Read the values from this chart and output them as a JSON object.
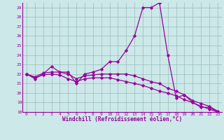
{
  "xlabel": "Windchill (Refroidissement éolien,°C)",
  "bg_color": "#cce8e8",
  "line_color": "#990099",
  "grid_color": "#99bbbb",
  "xlim": [
    -0.5,
    23.5
  ],
  "ylim": [
    18,
    29.5
  ],
  "yticks": [
    18,
    19,
    20,
    21,
    22,
    23,
    24,
    25,
    26,
    27,
    28,
    29
  ],
  "xticks": [
    0,
    1,
    2,
    3,
    4,
    5,
    6,
    7,
    8,
    9,
    10,
    11,
    12,
    13,
    14,
    15,
    16,
    17,
    18,
    19,
    20,
    21,
    22,
    23
  ],
  "series1": [
    22.0,
    21.5,
    22.0,
    22.8,
    22.2,
    22.2,
    21.0,
    22.0,
    22.2,
    22.5,
    23.3,
    23.3,
    24.5,
    26.0,
    29.0,
    29.0,
    29.5,
    24.0,
    19.5,
    19.8,
    19.0,
    18.5,
    18.5,
    18.0
  ],
  "series2": [
    22.0,
    21.7,
    22.1,
    22.2,
    22.2,
    22.0,
    21.5,
    21.8,
    21.9,
    22.0,
    22.0,
    22.0,
    22.0,
    21.8,
    21.5,
    21.2,
    21.0,
    20.5,
    20.2,
    19.8,
    19.2,
    18.9,
    18.6,
    18.1
  ],
  "series3": [
    22.0,
    21.6,
    21.9,
    22.0,
    21.9,
    21.5,
    21.2,
    21.5,
    21.6,
    21.6,
    21.6,
    21.4,
    21.2,
    21.0,
    20.8,
    20.5,
    20.2,
    20.0,
    19.7,
    19.3,
    19.0,
    18.6,
    18.3,
    18.0
  ]
}
